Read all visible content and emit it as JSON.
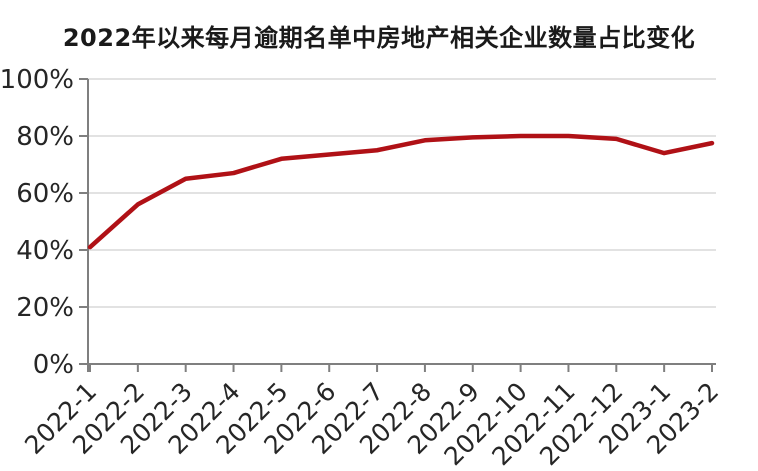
{
  "page": {
    "background": "#ffffff"
  },
  "chart_data": {
    "type": "line",
    "title": "2022年以来每月逾期名单中房地产相关企业数量占比变化",
    "categories": [
      "2022-1",
      "2022-2",
      "2022-3",
      "2022-4",
      "2022-5",
      "2022-6",
      "2022-7",
      "2022-8",
      "2022-9",
      "2022-10",
      "2022-11",
      "2022-12",
      "2023-1",
      "2023-2"
    ],
    "values": [
      41,
      56,
      65,
      67,
      72,
      73.5,
      75,
      78.5,
      79.5,
      80,
      80,
      79,
      74,
      77.5
    ],
    "ylim": [
      0,
      100
    ],
    "yticks": [
      0,
      20,
      40,
      60,
      80,
      100
    ],
    "ytick_labels": [
      "0%",
      "20%",
      "40%",
      "60%",
      "80%",
      "100%"
    ],
    "grid": true,
    "legend": "none",
    "colors": {
      "line": "#b01116",
      "gridline": "#d9d9d9",
      "axis": "#7f7f7f",
      "title": "#1a1a1a",
      "tick_label": "#262626"
    }
  }
}
